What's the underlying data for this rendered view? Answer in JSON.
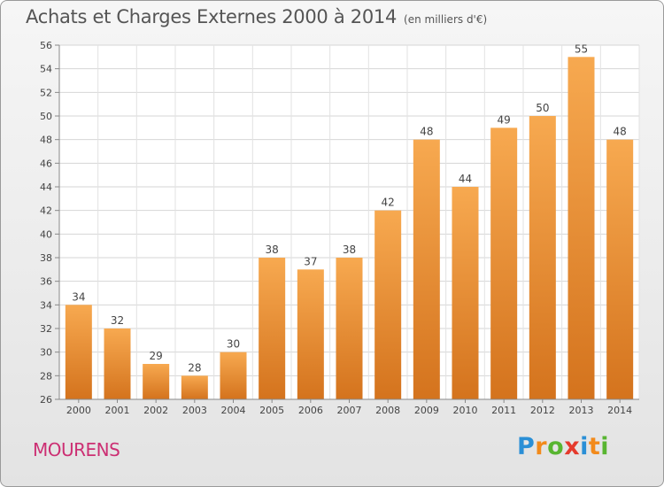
{
  "title": "Achats et Charges Externes 2000 à 2014",
  "subtitle": "(en milliers d'€)",
  "commune": "MOURENS",
  "logo": {
    "letters": [
      "P",
      "r",
      "o",
      "x",
      "i",
      "t",
      "i"
    ],
    "colors": [
      "#2a8fd6",
      "#f28a1b",
      "#58b531",
      "#e53a2c",
      "#2a8fd6",
      "#f28a1b",
      "#58b531"
    ]
  },
  "colors": {
    "bar_top": "#f7a950",
    "bar_bottom": "#d4731d",
    "title": "#555555",
    "commune": "#cc2f73"
  },
  "chart_data": {
    "type": "bar",
    "categories": [
      "2000",
      "2001",
      "2002",
      "2003",
      "2004",
      "2005",
      "2006",
      "2007",
      "2008",
      "2009",
      "2010",
      "2011",
      "2012",
      "2013",
      "2014"
    ],
    "values": [
      34,
      32,
      29,
      28,
      30,
      38,
      37,
      38,
      42,
      48,
      44,
      49,
      50,
      55,
      48
    ],
    "ylim": [
      26,
      56
    ],
    "yticks": [
      26,
      28,
      30,
      32,
      34,
      36,
      38,
      40,
      42,
      44,
      46,
      48,
      50,
      52,
      54,
      56
    ],
    "grid": true,
    "data_labels": true
  }
}
